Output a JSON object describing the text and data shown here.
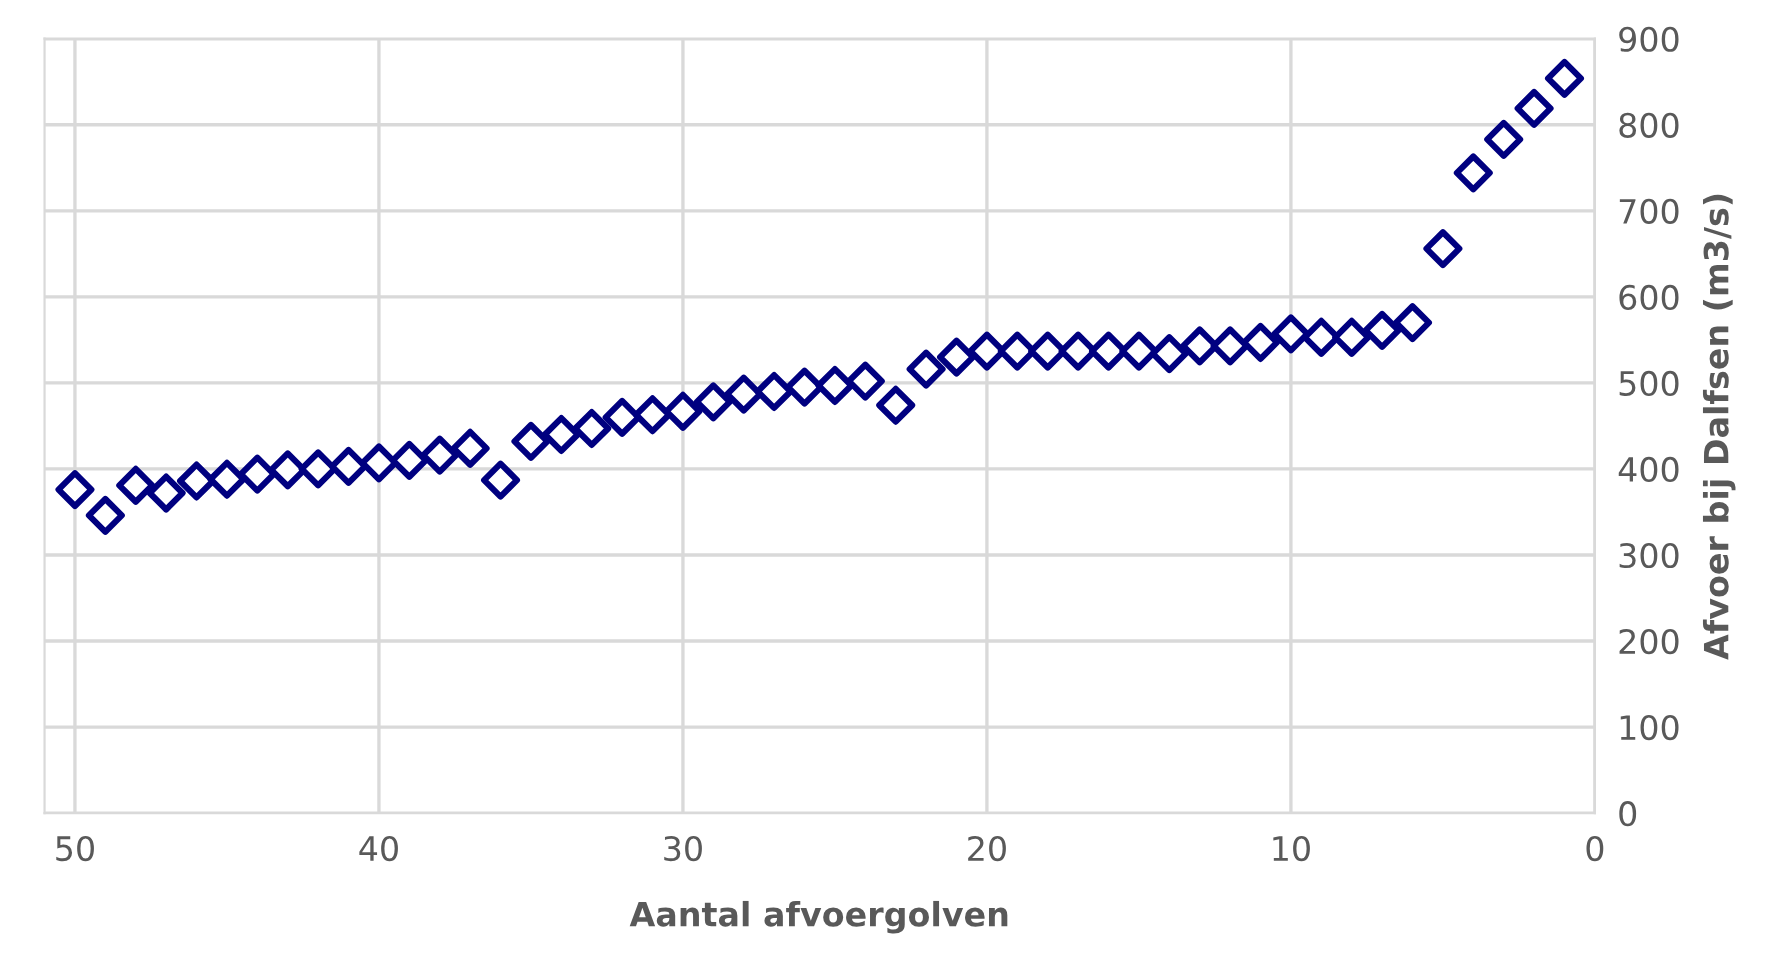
{
  "chart_data": {
    "type": "scatter",
    "xlabel": "Aantal afvoergolven",
    "ylabel": "Afvoer bij Dalfsen (m3/s)",
    "x": [
      50,
      49,
      48,
      47,
      46,
      45,
      44,
      43,
      42,
      41,
      40,
      39,
      38,
      37,
      36,
      35,
      34,
      33,
      32,
      31,
      30,
      29,
      28,
      27,
      26,
      25,
      24,
      23,
      22,
      21,
      20,
      19,
      18,
      17,
      16,
      15,
      14,
      13,
      12,
      11,
      10,
      9,
      8,
      7,
      6,
      5,
      4,
      3,
      2,
      1
    ],
    "series": [
      {
        "color": "#000080",
        "values": [
          376,
          346,
          381,
          372,
          386,
          388,
          394,
          399,
          400,
          403,
          407,
          410,
          416,
          424,
          387,
          432,
          440,
          447,
          460,
          463,
          467,
          478,
          487,
          490,
          495,
          497,
          502,
          474,
          516,
          530,
          537,
          537,
          537,
          537,
          537,
          537,
          534,
          543,
          543,
          547,
          557,
          553,
          553,
          561,
          570,
          656,
          744,
          783,
          819,
          854
        ]
      }
    ],
    "xlim": [
      51,
      0
    ],
    "xticks": [
      50,
      40,
      30,
      20,
      10,
      0
    ],
    "ylim": [
      0,
      900
    ],
    "yticks": [
      0,
      100,
      200,
      300,
      400,
      500,
      600,
      700,
      800,
      900
    ],
    "grid": true,
    "marker": "diamond"
  }
}
